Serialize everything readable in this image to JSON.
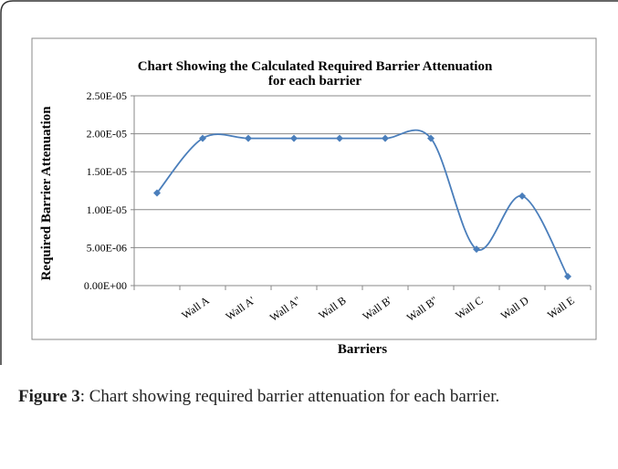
{
  "chart_data": {
    "type": "line",
    "title": "Chart Showing the Calculated Required Barrier Attenuation",
    "subtitle": "for each barrier",
    "xlabel": "Barriers",
    "ylabel": "Required Barrier Attenuation",
    "categories": [
      null,
      "Wall A",
      "Wall A'",
      "Wall A''",
      "Wall B",
      "Wall B'",
      "Wall B''",
      "Wall C",
      "Wall D",
      "Wall E"
    ],
    "series": [
      {
        "name": "Required Barrier Attenuation",
        "color": "#4a7ebb",
        "values": [
          1.22e-05,
          1.94e-05,
          1.94e-05,
          1.94e-05,
          1.94e-05,
          1.94e-05,
          1.94e-05,
          4.8e-06,
          1.18e-05,
          1.2e-06
        ]
      }
    ],
    "ylim": [
      0,
      2.5e-05
    ],
    "yticks": [
      {
        "value": 0,
        "label": "0.00E+00"
      },
      {
        "value": 5e-06,
        "label": "5.00E-06"
      },
      {
        "value": 1e-05,
        "label": "1.00E-05"
      },
      {
        "value": 1.5e-05,
        "label": "1.50E-05"
      },
      {
        "value": 2e-05,
        "label": "2.00E-05"
      },
      {
        "value": 2.5e-05,
        "label": "2.50E-05"
      }
    ],
    "grid": true,
    "smooth": true
  },
  "figure": {
    "label": "Figure 3",
    "caption": ": Chart showing required barrier attenuation for each barrier."
  }
}
